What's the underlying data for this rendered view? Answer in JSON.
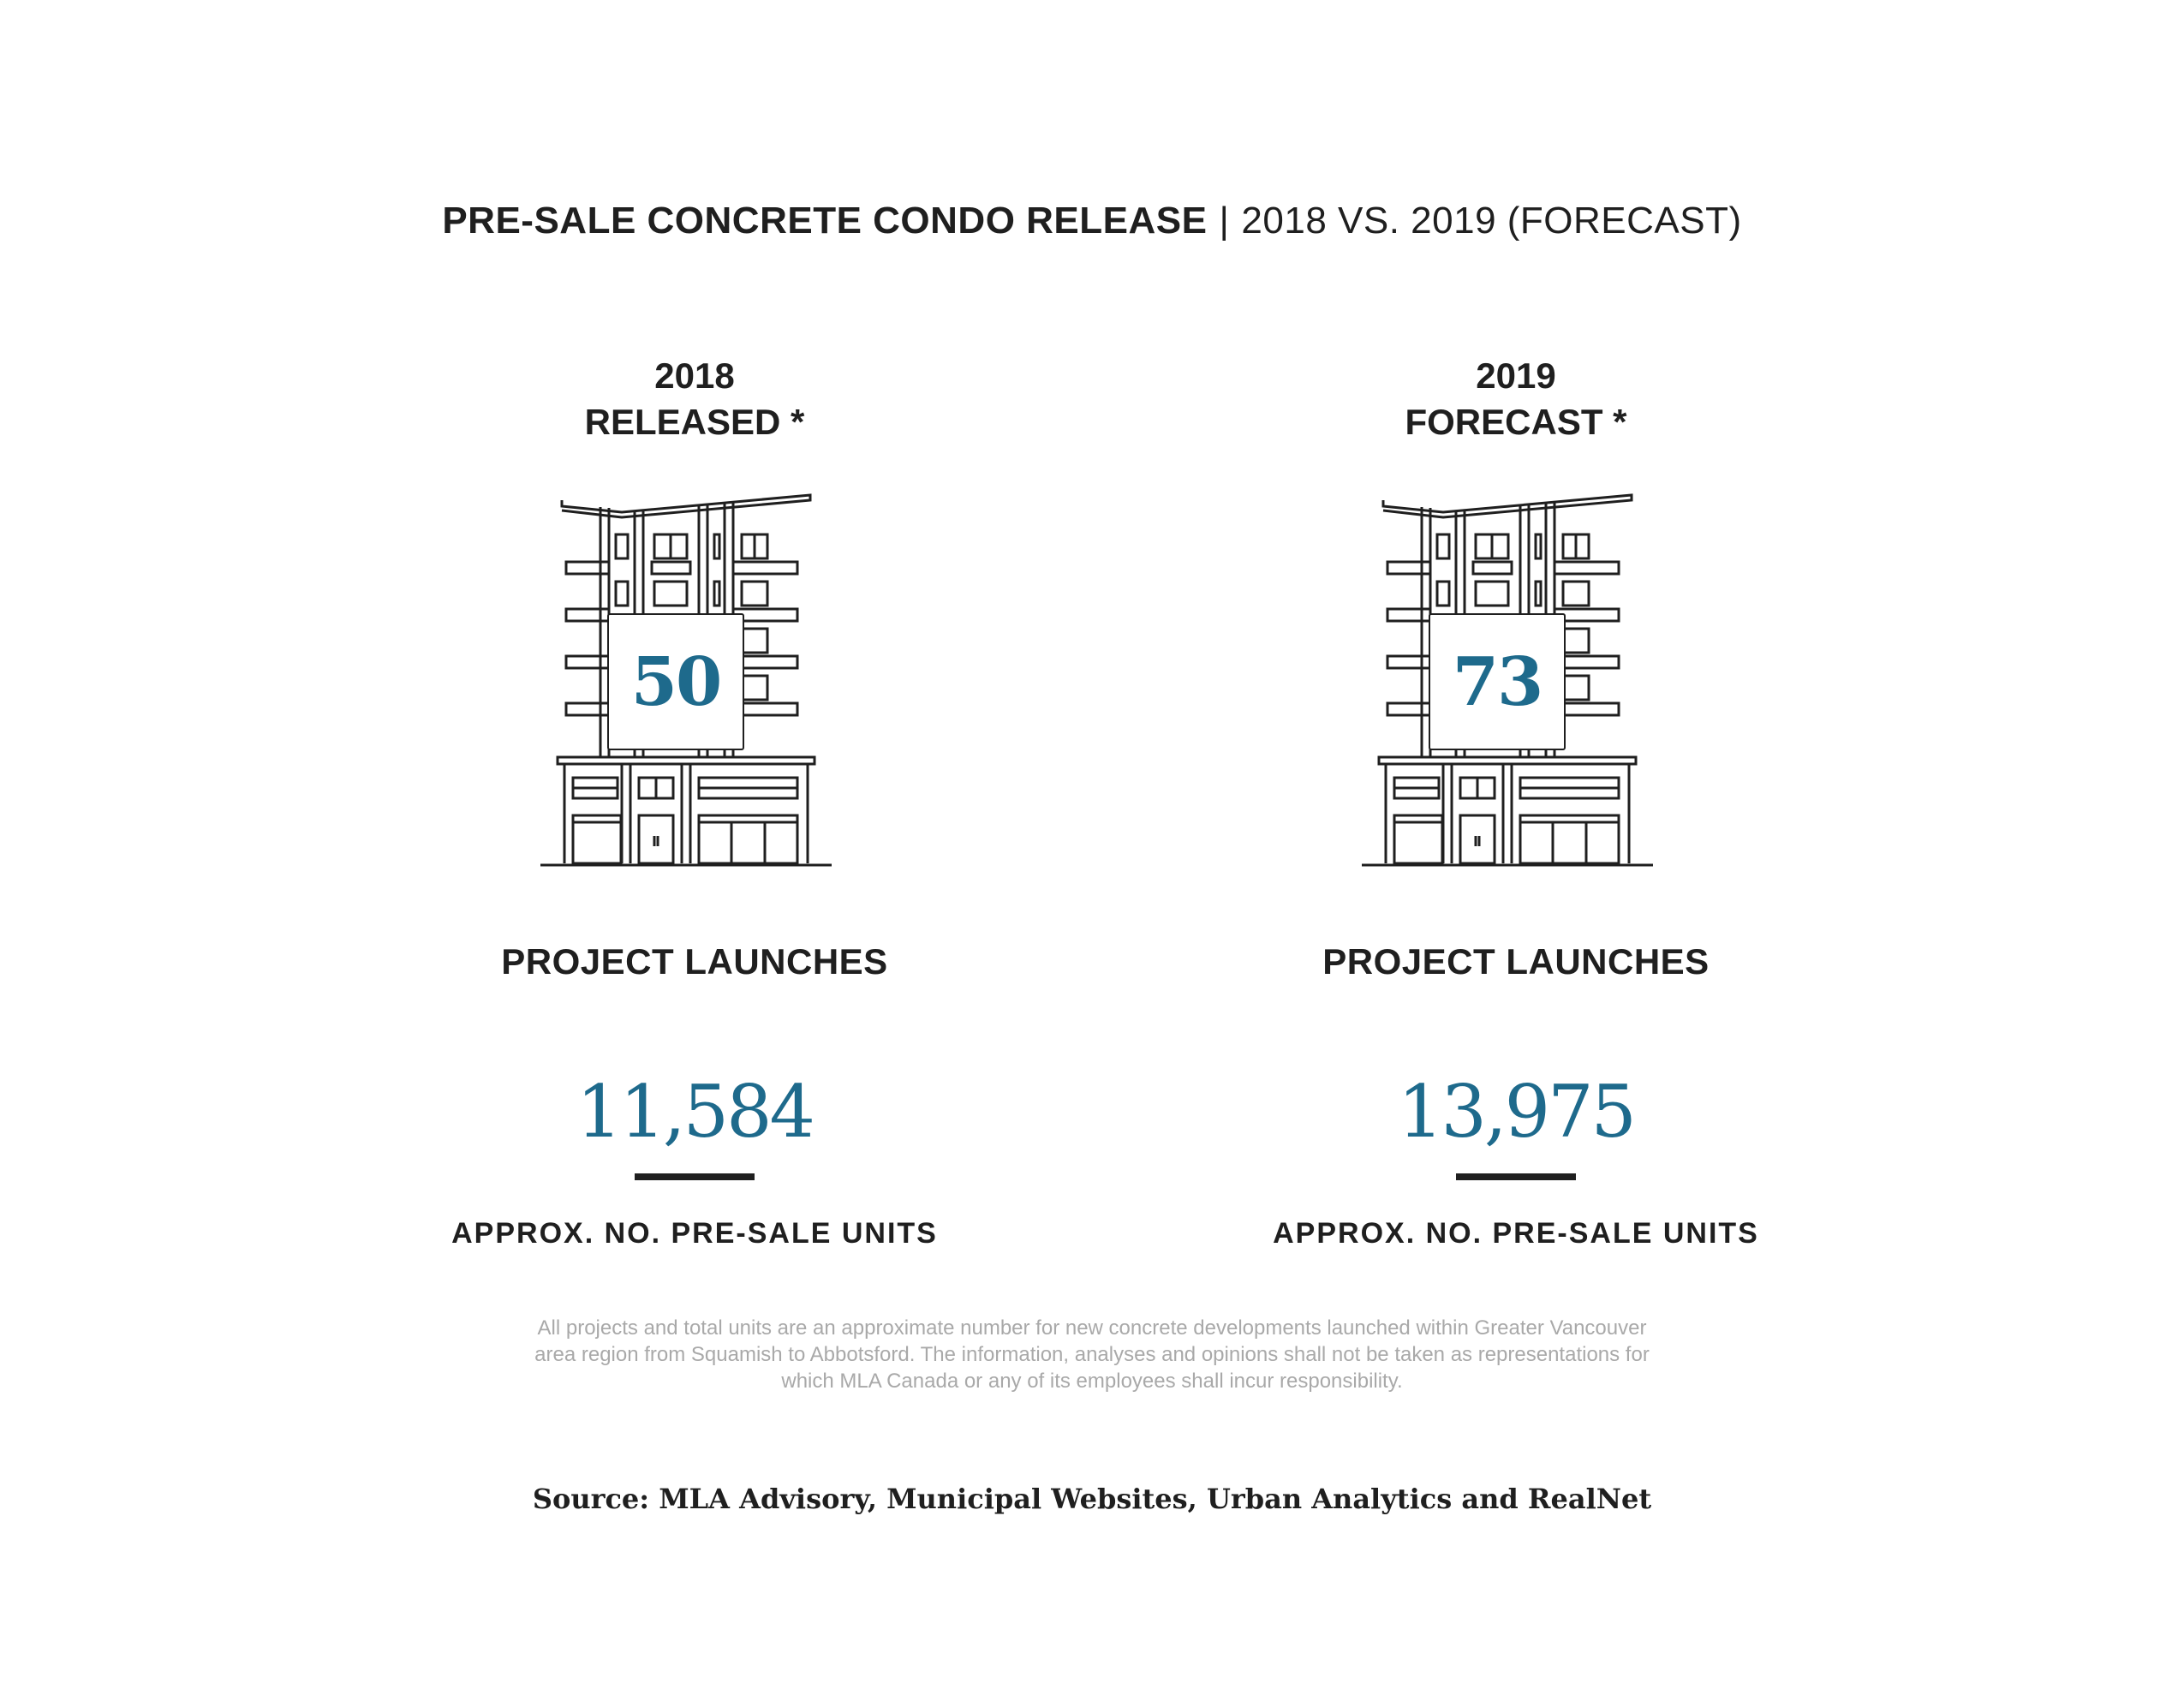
{
  "header": {
    "title_bold": "PRE-SALE CONCRETE CONDO RELEASE",
    "separator": "|",
    "title_light": "2018 VS. 2019 (FORECAST)"
  },
  "columns": [
    {
      "year": "2018",
      "status": "RELEASED *",
      "project_launches": "50",
      "launches_label": "PROJECT LAUNCHES",
      "units": "11,584",
      "units_label": "APPROX. NO. PRE-SALE UNITS"
    },
    {
      "year": "2019",
      "status": "FORECAST *",
      "project_launches": "73",
      "launches_label": "PROJECT LAUNCHES",
      "units": "13,975",
      "units_label": "APPROX. NO. PRE-SALE UNITS"
    }
  ],
  "disclaimer": {
    "line1": "All projects and total units are an approximate number for new concrete developments launched within Greater Vancouver",
    "line2": "area region from Squamish to Abbotsford. The information, analyses and opinions shall not be taken as representations for",
    "line3": "which MLA Canada or any of its employees shall incur responsibility."
  },
  "source": "Source: MLA Advisory, Municipal Websites, Urban Analytics and RealNet",
  "colors": {
    "accent": "#1e6a8c",
    "text": "#1f1f1f",
    "muted": "#a9a9a9"
  },
  "icons": [
    "building-icon",
    "building-icon"
  ]
}
